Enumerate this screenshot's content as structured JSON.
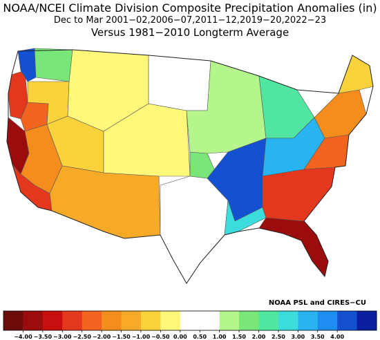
{
  "titles": {
    "line1": "NOAA/NCEI Climate Division Composite Precipitation Anomalies (in)",
    "line2": "Dec to Mar  2001−02,2006−07,2011−12,2019−20,2022−23",
    "line3": "Versus 1981−2010 Longterm Average"
  },
  "credit": "NOAA PSL and CIRES−CU",
  "legend": {
    "tick_labels": [
      "−4.00",
      "−3.50",
      "−3.00",
      "−2.50",
      "−2.00",
      "−1.50",
      "−1.00",
      "−0.50",
      "0.00",
      "0.50",
      "1.00",
      "1.50",
      "2.00",
      "2.50",
      "3.00",
      "3.50",
      "4.00"
    ],
    "colors": [
      "#6e0c0c",
      "#9b0d0d",
      "#c80f0f",
      "#e3371e",
      "#f2641e",
      "#f58c1e",
      "#f7aa28",
      "#fad23c",
      "#fff87a",
      "#ffffff",
      "#ffffff",
      "#b4f58c",
      "#78e678",
      "#50e6a0",
      "#3cdcdc",
      "#28b4f0",
      "#1e8cf0",
      "#1450d2",
      "#0a1ea0"
    ]
  },
  "regions": [
    {
      "name": "pacific-northwest-coast",
      "color": "#e3371e"
    },
    {
      "name": "olympic-peninsula",
      "color": "#1450d2"
    },
    {
      "name": "washington-interior",
      "color": "#78e678"
    },
    {
      "name": "oregon-coast",
      "color": "#f2641e"
    },
    {
      "name": "oregon-interior",
      "color": "#fad23c"
    },
    {
      "name": "northern-california-coast",
      "color": "#9b0d0d"
    },
    {
      "name": "central-california",
      "color": "#f58c1e"
    },
    {
      "name": "southern-california",
      "color": "#e3371e"
    },
    {
      "name": "great-basin",
      "color": "#fad23c"
    },
    {
      "name": "idaho-montana",
      "color": "#fff87a"
    },
    {
      "name": "arizona-new-mexico",
      "color": "#f7aa28"
    },
    {
      "name": "rockies-plains",
      "color": "#fff87a"
    },
    {
      "name": "northern-plains",
      "color": "#ffffff"
    },
    {
      "name": "texas",
      "color": "#ffffff"
    },
    {
      "name": "texas-panhandle",
      "color": "#78e678"
    },
    {
      "name": "upper-midwest",
      "color": "#b4f58c"
    },
    {
      "name": "great-lakes",
      "color": "#50e6a0"
    },
    {
      "name": "ohio-valley",
      "color": "#28b4f0"
    },
    {
      "name": "tennessee-valley",
      "color": "#1450d2"
    },
    {
      "name": "gulf-coast",
      "color": "#3cdcdc"
    },
    {
      "name": "florida",
      "color": "#9b0d0d"
    },
    {
      "name": "georgia-carolinas",
      "color": "#e3371e"
    },
    {
      "name": "mid-atlantic",
      "color": "#f2641e"
    },
    {
      "name": "northeast",
      "color": "#f58c1e"
    },
    {
      "name": "maine",
      "color": "#fad23c"
    }
  ]
}
